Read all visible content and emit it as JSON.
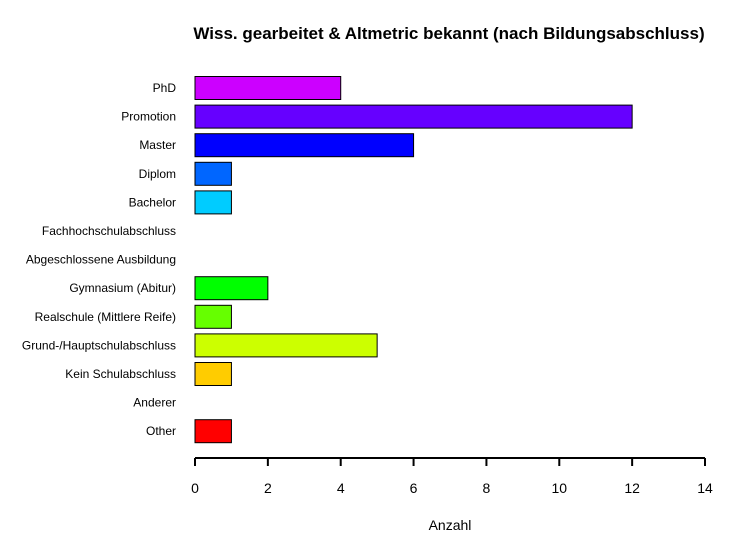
{
  "chart_data": {
    "type": "bar",
    "orientation": "horizontal",
    "title": "Wiss. gearbeitet & Altmetric bekannt (nach Bildungsabschluss)",
    "xlabel": "Anzahl",
    "ylabel": "",
    "xlim": [
      0,
      14
    ],
    "xticks": [
      "0",
      "2",
      "4",
      "6",
      "8",
      "10",
      "12",
      "14"
    ],
    "categories": [
      "PhD",
      "Promotion",
      "Master",
      "Diplom",
      "Bachelor",
      "Fachhochschulabschluss",
      "Abgeschlossene Ausbildung",
      "Gymnasium (Abitur)",
      "Realschule (Mittlere Reife)",
      "Grund-/Hauptschulabschluss",
      "Kein Schulabschluss",
      "Anderer",
      "Other"
    ],
    "values": [
      4,
      12,
      6,
      1,
      1,
      0,
      0,
      2,
      1,
      5,
      1,
      0,
      1
    ],
    "colors": [
      "#CC00FF",
      "#6600FF",
      "#0000FF",
      "#0066FF",
      "#00CCFF",
      "#00FFCC",
      "#00FF66",
      "#00FF00",
      "#66FF00",
      "#CCFF00",
      "#FFCC00",
      "#FF6600",
      "#FF0000"
    ],
    "grid": false,
    "legend": "none"
  }
}
